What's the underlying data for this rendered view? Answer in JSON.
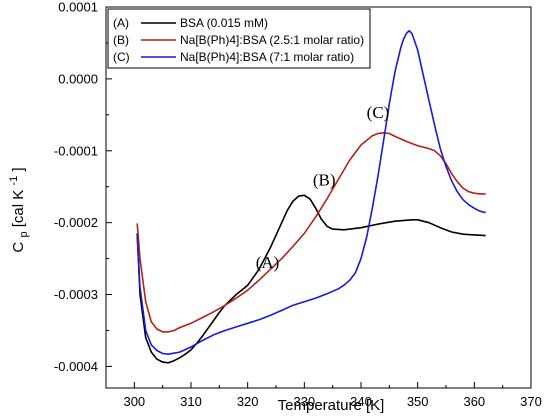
{
  "chart_data": {
    "type": "line",
    "xlabel": "Temperature [K]",
    "ylabel_main": "C",
    "ylabel_sub": "p",
    "ylabel_rest": "[cal K",
    "ylabel_sup": "-1",
    "ylabel_close": "]",
    "xlim": [
      295,
      370
    ],
    "ylim": [
      -0.00043,
      0.0001
    ],
    "x_ticks": [
      300,
      310,
      320,
      330,
      340,
      350,
      360,
      370
    ],
    "x_tick_labels": [
      "300",
      "310",
      "320",
      "330",
      "340",
      "350",
      "360",
      "370"
    ],
    "y_ticks": [
      0.0001,
      0.0,
      -0.0001,
      -0.0002,
      -0.0003,
      -0.0004
    ],
    "y_tick_labels": [
      "0.0001",
      "0.0000",
      "-0.0001",
      "-0.0002",
      "-0.0003",
      "-0.0004"
    ],
    "legend_position": "top-left",
    "legend": [
      {
        "tag": "(A)",
        "label": "BSA (0.015 mM)"
      },
      {
        "tag": "(B)",
        "label": "Na[B(Ph)4]:BSA (2.5:1 molar ratio)"
      },
      {
        "tag": "(C)",
        "label": "Na[B(Ph)4]:BSA (7:1 molar ratio)"
      }
    ],
    "annotations": [
      {
        "text": "(A)",
        "x": 323.5,
        "y": -0.000263
      },
      {
        "text": "(B)",
        "x": 333.5,
        "y": -0.000148
      },
      {
        "text": "(C)",
        "x": 343.0,
        "y": -5.45e-05
      }
    ],
    "series": [
      {
        "color": "#000000",
        "points": [
          [
            300.5,
            -0.000215
          ],
          [
            301,
            -0.0003
          ],
          [
            302,
            -0.00036
          ],
          [
            303,
            -0.00038
          ],
          [
            304,
            -0.00039
          ],
          [
            305,
            -0.000394
          ],
          [
            306,
            -0.000395
          ],
          [
            307,
            -0.000392
          ],
          [
            308,
            -0.000388
          ],
          [
            309,
            -0.000383
          ],
          [
            310,
            -0.000377
          ],
          [
            311,
            -0.000368
          ],
          [
            312,
            -0.000358
          ],
          [
            313,
            -0.000347
          ],
          [
            314,
            -0.000336
          ],
          [
            315,
            -0.000325
          ],
          [
            316,
            -0.000315
          ],
          [
            318,
            -0.0003
          ],
          [
            320,
            -0.000287
          ],
          [
            322,
            -0.000265
          ],
          [
            324,
            -0.000235
          ],
          [
            326,
            -0.0002
          ],
          [
            327,
            -0.000183
          ],
          [
            328,
            -0.00017
          ],
          [
            329,
            -0.000163
          ],
          [
            330,
            -0.000162
          ],
          [
            331,
            -0.000167
          ],
          [
            332,
            -0.00018
          ],
          [
            333,
            -0.000195
          ],
          [
            334,
            -0.000205
          ],
          [
            335,
            -0.000209
          ],
          [
            337,
            -0.00021
          ],
          [
            340,
            -0.000207
          ],
          [
            343,
            -0.000202
          ],
          [
            346,
            -0.000198
          ],
          [
            349,
            -0.000196
          ],
          [
            350,
            -0.000196
          ],
          [
            352,
            -0.0002
          ],
          [
            354,
            -0.000207
          ],
          [
            356,
            -0.000213
          ],
          [
            358,
            -0.000216
          ],
          [
            360,
            -0.000217
          ],
          [
            362,
            -0.000218
          ]
        ]
      },
      {
        "color": "#b02418",
        "points": [
          [
            300.5,
            -0.000201
          ],
          [
            301,
            -0.00025
          ],
          [
            302,
            -0.00031
          ],
          [
            303,
            -0.000338
          ],
          [
            304,
            -0.000348
          ],
          [
            305,
            -0.000352
          ],
          [
            306,
            -0.000352
          ],
          [
            307,
            -0.00035
          ],
          [
            308,
            -0.000346
          ],
          [
            310,
            -0.00034
          ],
          [
            312,
            -0.000332
          ],
          [
            314,
            -0.000324
          ],
          [
            316,
            -0.000315
          ],
          [
            318,
            -0.000305
          ],
          [
            320,
            -0.000294
          ],
          [
            322,
            -0.00028
          ],
          [
            324,
            -0.000265
          ],
          [
            326,
            -0.00025
          ],
          [
            328,
            -0.000233
          ],
          [
            330,
            -0.000215
          ],
          [
            332,
            -0.000192
          ],
          [
            334,
            -0.000167
          ],
          [
            336,
            -0.00014
          ],
          [
            338,
            -0.000113
          ],
          [
            340,
            -9.2e-05
          ],
          [
            342,
            -7.9e-05
          ],
          [
            343,
            -7.6e-05
          ],
          [
            344,
            -7.5e-05
          ],
          [
            345,
            -7.6e-05
          ],
          [
            346,
            -8e-05
          ],
          [
            348,
            -8.7e-05
          ],
          [
            350,
            -9.3e-05
          ],
          [
            352,
            -9.7e-05
          ],
          [
            353,
            -0.0001
          ],
          [
            354,
            -0.000107
          ],
          [
            355,
            -0.000118
          ],
          [
            356,
            -0.000132
          ],
          [
            357,
            -0.000143
          ],
          [
            358,
            -0.000152
          ],
          [
            359,
            -0.000157
          ],
          [
            360,
            -0.000159
          ],
          [
            361,
            -0.00016
          ],
          [
            362,
            -0.00016
          ]
        ]
      },
      {
        "color": "#1a1ad0",
        "points": [
          [
            300.5,
            -0.000217
          ],
          [
            301,
            -0.00029
          ],
          [
            302,
            -0.00035
          ],
          [
            303,
            -0.00037
          ],
          [
            304,
            -0.000378
          ],
          [
            305,
            -0.000382
          ],
          [
            306,
            -0.000383
          ],
          [
            308,
            -0.00038
          ],
          [
            310,
            -0.000373
          ],
          [
            312,
            -0.000364
          ],
          [
            314,
            -0.000356
          ],
          [
            316,
            -0.00035
          ],
          [
            318,
            -0.000345
          ],
          [
            320,
            -0.00034
          ],
          [
            322,
            -0.000335
          ],
          [
            324,
            -0.000329
          ],
          [
            326,
            -0.000322
          ],
          [
            328,
            -0.000315
          ],
          [
            330,
            -0.00031
          ],
          [
            332,
            -0.000305
          ],
          [
            334,
            -0.000299
          ],
          [
            336,
            -0.000292
          ],
          [
            337,
            -0.000287
          ],
          [
            338,
            -0.00028
          ],
          [
            339,
            -0.00027
          ],
          [
            340,
            -0.00025
          ],
          [
            341,
            -0.00022
          ],
          [
            342,
            -0.00018
          ],
          [
            343,
            -0.000135
          ],
          [
            344,
            -8.5e-05
          ],
          [
            345,
            -3.5e-05
          ],
          [
            346,
            1e-05
          ],
          [
            347,
            4.3e-05
          ],
          [
            347.5,
            5.5e-05
          ],
          [
            348,
            6.3e-05
          ],
          [
            348.5,
            6.7e-05
          ],
          [
            349,
            6.3e-05
          ],
          [
            350,
            4e-05
          ],
          [
            351,
            5e-06
          ],
          [
            352,
            -3e-05
          ],
          [
            353,
            -6.5e-05
          ],
          [
            354,
            -9.7e-05
          ],
          [
            355,
            -0.000122
          ],
          [
            356,
            -0.000142
          ],
          [
            357,
            -0.000157
          ],
          [
            358,
            -0.000168
          ],
          [
            359,
            -0.000175
          ],
          [
            360,
            -0.00018
          ],
          [
            361,
            -0.000184
          ],
          [
            362,
            -0.000186
          ]
        ]
      }
    ]
  }
}
